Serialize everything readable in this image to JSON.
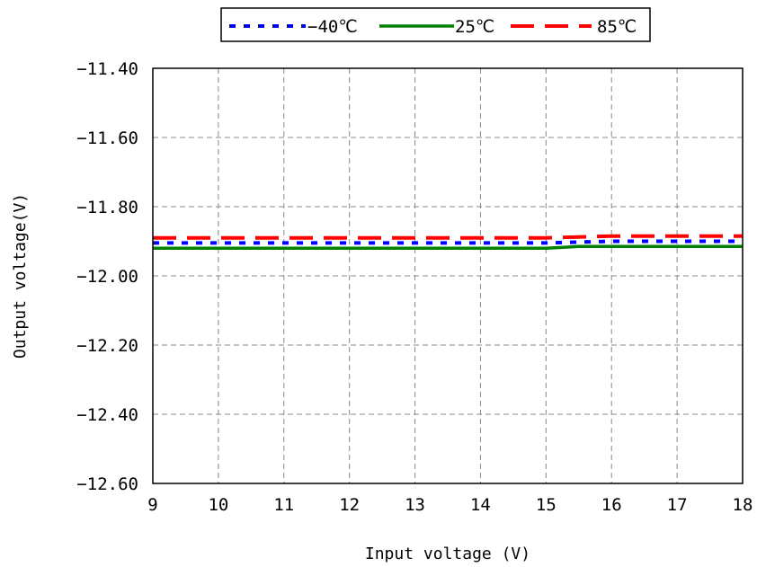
{
  "chart_data": {
    "type": "line",
    "title": "",
    "xlabel": "Input voltage (V)",
    "ylabel": "Output voltage(V)",
    "xlim": [
      9,
      18
    ],
    "ylim": [
      -12.6,
      -11.4
    ],
    "x_ticks": [
      9,
      10,
      11,
      12,
      13,
      14,
      15,
      16,
      17,
      18
    ],
    "y_ticks": [
      -11.4,
      -11.6,
      -11.8,
      -12.0,
      -12.2,
      -12.4,
      -12.6
    ],
    "x_tick_labels": [
      "9",
      "10",
      "11",
      "12",
      "13",
      "14",
      "15",
      "16",
      "17",
      "18"
    ],
    "y_tick_labels": [
      "−11.40",
      "−11.60",
      "−11.80",
      "−12.00",
      "−12.20",
      "−12.40",
      "−12.60"
    ],
    "grid": true,
    "legend_position": "top",
    "series": [
      {
        "name": "−40℃",
        "color": "#0000ff",
        "dash": "dotted",
        "x": [
          9,
          10,
          11,
          12,
          13,
          14,
          15,
          16,
          17,
          18
        ],
        "y": [
          -11.905,
          -11.905,
          -11.905,
          -11.905,
          -11.905,
          -11.905,
          -11.905,
          -11.9,
          -11.9,
          -11.9
        ]
      },
      {
        "name": "25℃",
        "color": "#008000",
        "dash": "solid",
        "x": [
          9,
          10,
          11,
          12,
          13,
          14,
          15,
          15.5,
          16,
          17,
          18
        ],
        "y": [
          -11.92,
          -11.92,
          -11.92,
          -11.92,
          -11.92,
          -11.92,
          -11.92,
          -11.915,
          -11.915,
          -11.915,
          -11.915
        ]
      },
      {
        "name": "85℃",
        "color": "#ff0000",
        "dash": "dashed",
        "x": [
          9,
          10,
          11,
          12,
          13,
          14,
          15,
          16,
          17,
          18
        ],
        "y": [
          -11.89,
          -11.89,
          -11.89,
          -11.89,
          -11.89,
          -11.89,
          -11.89,
          -11.885,
          -11.885,
          -11.885
        ]
      }
    ]
  }
}
